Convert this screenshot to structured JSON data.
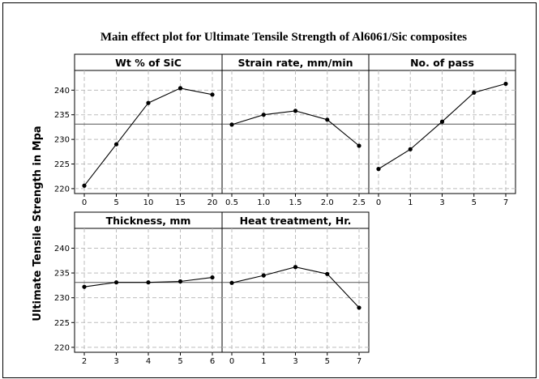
{
  "chart_data": {
    "type": "line",
    "title": "Main effect plot for Ultimate Tensile Strength of Al6061/Sic composites",
    "ylabel": "Ultimate Tensile Strength in Mpa",
    "ylim": [
      219,
      244
    ],
    "yticks": [
      220,
      225,
      230,
      235,
      240
    ],
    "overall_mean": 233.1,
    "grid": true,
    "panels": [
      {
        "title": "Wt % of SiC",
        "x": [
          "0",
          "5",
          "10",
          "15",
          "20"
        ],
        "values": [
          220.6,
          229.0,
          237.4,
          240.4,
          239.1
        ]
      },
      {
        "title": "Strain rate, mm/min",
        "x": [
          "0.5",
          "1.0",
          "1.5",
          "2.0",
          "2.5"
        ],
        "values": [
          233.0,
          235.0,
          235.8,
          234.0,
          228.7
        ]
      },
      {
        "title": "No. of pass",
        "x": [
          "0",
          "1",
          "3",
          "5",
          "7"
        ],
        "values": [
          224.0,
          228.0,
          233.6,
          239.5,
          241.3
        ]
      },
      {
        "title": "Thickness, mm",
        "x": [
          "2",
          "3",
          "4",
          "5",
          "6"
        ],
        "values": [
          232.2,
          233.1,
          233.1,
          233.3,
          234.1
        ]
      },
      {
        "title": "Heat treatment, Hr.",
        "x": [
          "0",
          "1",
          "3",
          "5",
          "7"
        ],
        "values": [
          233.0,
          234.5,
          236.2,
          234.8,
          228.0
        ]
      }
    ]
  }
}
